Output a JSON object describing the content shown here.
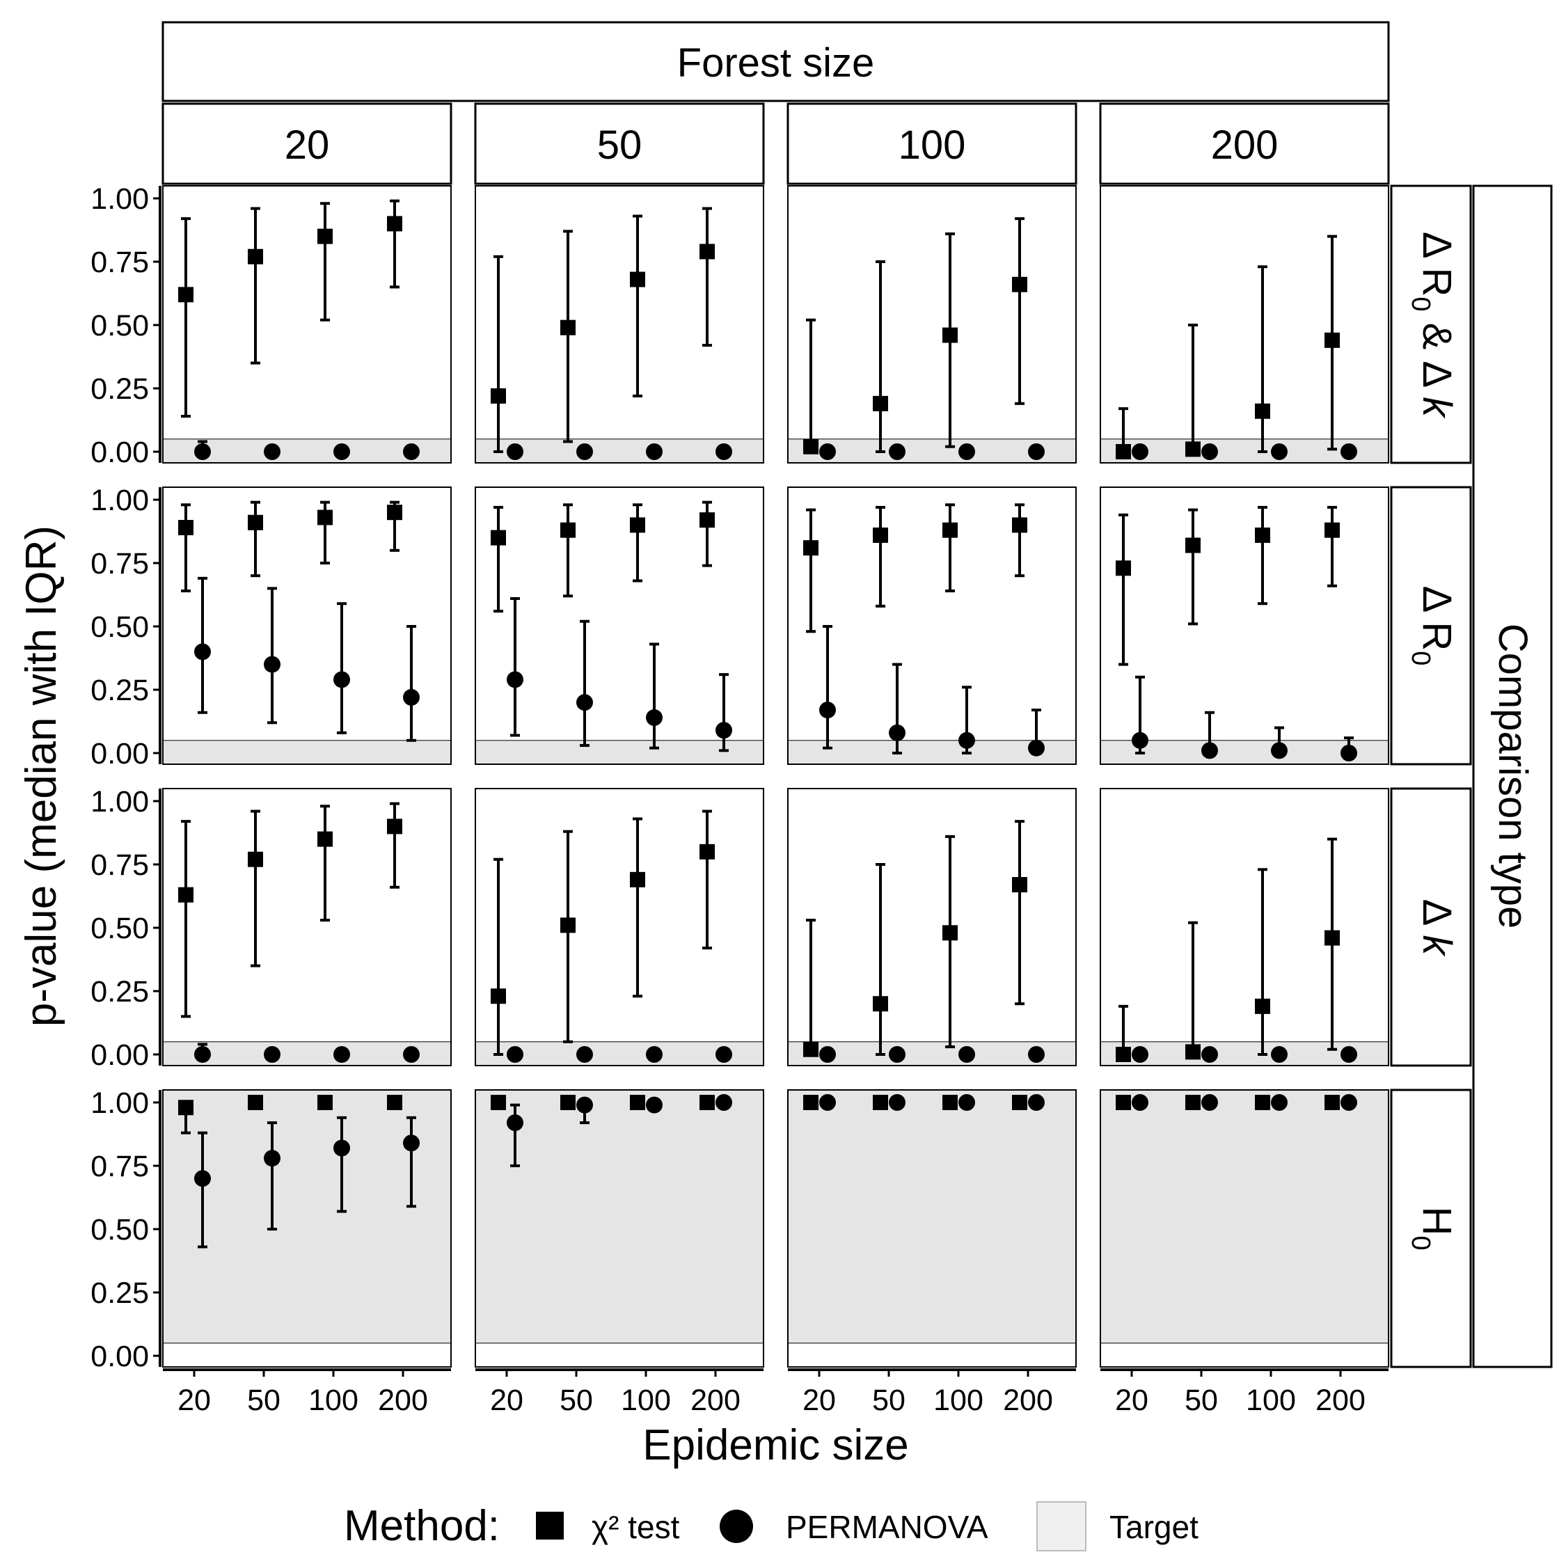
{
  "chart_data": {
    "type": "scatter",
    "subtype": "faceted point-range plot (median with IQR error bars)",
    "facet_col_title": "Forest size",
    "facet_cols": [
      "20",
      "50",
      "100",
      "200"
    ],
    "facet_row_title": "Comparison type",
    "facet_rows": [
      {
        "key": "R0k",
        "parts": [
          "Δ R",
          "0",
          " & Δ ",
          "k"
        ]
      },
      {
        "key": "R0",
        "parts": [
          "Δ R",
          "0"
        ]
      },
      {
        "key": "k",
        "parts": [
          "Δ ",
          "k"
        ]
      },
      {
        "key": "H0",
        "parts": [
          "H",
          "0"
        ]
      }
    ],
    "xlabel": "Epidemic size",
    "x_categories": [
      "20",
      "50",
      "100",
      "200"
    ],
    "ylabel": "p-value (median with IQR)",
    "ylim": [
      0,
      1
    ],
    "yticks": [
      "0.00",
      "0.25",
      "0.50",
      "0.75",
      "1.00"
    ],
    "target_threshold": 0.05,
    "legend": {
      "title": "Method:",
      "items": [
        {
          "label": "χ² test",
          "shape": "square"
        },
        {
          "label": "PERMANOVA",
          "shape": "circle"
        },
        {
          "label": "Target",
          "shape": "grey-fill"
        }
      ],
      "position": "bottom"
    },
    "series": [
      {
        "name": "χ² test",
        "panels": {
          "R0k": [
            [
              [
                0.62,
                0.14,
                0.92
              ],
              [
                0.77,
                0.35,
                0.96
              ],
              [
                0.85,
                0.52,
                0.98
              ],
              [
                0.9,
                0.65,
                0.99
              ]
            ],
            [
              [
                0.22,
                0.0,
                0.77
              ],
              [
                0.49,
                0.04,
                0.87
              ],
              [
                0.68,
                0.22,
                0.93
              ],
              [
                0.79,
                0.42,
                0.96
              ]
            ],
            [
              [
                0.02,
                0.0,
                0.52
              ],
              [
                0.19,
                0.0,
                0.75
              ],
              [
                0.46,
                0.02,
                0.86
              ],
              [
                0.66,
                0.19,
                0.92
              ]
            ],
            [
              [
                0.0,
                0.0,
                0.17
              ],
              [
                0.01,
                0.0,
                0.5
              ],
              [
                0.16,
                0.0,
                0.73
              ],
              [
                0.44,
                0.01,
                0.85
              ]
            ]
          ],
          "R0": [
            [
              [
                0.89,
                0.64,
                0.98
              ],
              [
                0.91,
                0.7,
                0.99
              ],
              [
                0.93,
                0.75,
                0.99
              ],
              [
                0.95,
                0.8,
                0.99
              ]
            ],
            [
              [
                0.85,
                0.56,
                0.97
              ],
              [
                0.88,
                0.62,
                0.98
              ],
              [
                0.9,
                0.68,
                0.98
              ],
              [
                0.92,
                0.74,
                0.99
              ]
            ],
            [
              [
                0.81,
                0.48,
                0.96
              ],
              [
                0.86,
                0.58,
                0.97
              ],
              [
                0.88,
                0.64,
                0.98
              ],
              [
                0.9,
                0.7,
                0.98
              ]
            ],
            [
              [
                0.73,
                0.35,
                0.94
              ],
              [
                0.82,
                0.51,
                0.96
              ],
              [
                0.86,
                0.59,
                0.97
              ],
              [
                0.88,
                0.66,
                0.97
              ]
            ]
          ],
          "k": [
            [
              [
                0.63,
                0.15,
                0.92
              ],
              [
                0.77,
                0.35,
                0.96
              ],
              [
                0.85,
                0.53,
                0.98
              ],
              [
                0.9,
                0.66,
                0.99
              ]
            ],
            [
              [
                0.23,
                0.0,
                0.77
              ],
              [
                0.51,
                0.05,
                0.88
              ],
              [
                0.69,
                0.23,
                0.93
              ],
              [
                0.8,
                0.42,
                0.96
              ]
            ],
            [
              [
                0.02,
                0.0,
                0.53
              ],
              [
                0.2,
                0.0,
                0.75
              ],
              [
                0.48,
                0.03,
                0.86
              ],
              [
                0.67,
                0.2,
                0.92
              ]
            ],
            [
              [
                0.0,
                0.0,
                0.19
              ],
              [
                0.01,
                0.0,
                0.52
              ],
              [
                0.19,
                0.0,
                0.73
              ],
              [
                0.46,
                0.02,
                0.85
              ]
            ]
          ],
          "H0": [
            [
              [
                0.98,
                0.88,
                1.0
              ],
              [
                1.0,
                1.0,
                1.0
              ],
              [
                1.0,
                1.0,
                1.0
              ],
              [
                1.0,
                1.0,
                1.0
              ]
            ],
            [
              [
                1.0,
                1.0,
                1.0
              ],
              [
                1.0,
                1.0,
                1.0
              ],
              [
                1.0,
                1.0,
                1.0
              ],
              [
                1.0,
                1.0,
                1.0
              ]
            ],
            [
              [
                1.0,
                1.0,
                1.0
              ],
              [
                1.0,
                1.0,
                1.0
              ],
              [
                1.0,
                1.0,
                1.0
              ],
              [
                1.0,
                1.0,
                1.0
              ]
            ],
            [
              [
                1.0,
                1.0,
                1.0
              ],
              [
                1.0,
                1.0,
                1.0
              ],
              [
                1.0,
                1.0,
                1.0
              ],
              [
                1.0,
                1.0,
                1.0
              ]
            ]
          ]
        }
      },
      {
        "name": "PERMANOVA",
        "panels": {
          "R0k": [
            [
              [
                0.0,
                0.0,
                0.04
              ],
              [
                0.0,
                0.0,
                0.0
              ],
              [
                0.0,
                0.0,
                0.0
              ],
              [
                0.0,
                0.0,
                0.0
              ]
            ],
            [
              [
                0.0,
                0.0,
                0.0
              ],
              [
                0.0,
                0.0,
                0.0
              ],
              [
                0.0,
                0.0,
                0.0
              ],
              [
                0.0,
                0.0,
                0.0
              ]
            ],
            [
              [
                0.0,
                0.0,
                0.0
              ],
              [
                0.0,
                0.0,
                0.0
              ],
              [
                0.0,
                0.0,
                0.0
              ],
              [
                0.0,
                0.0,
                0.0
              ]
            ],
            [
              [
                0.0,
                0.0,
                0.0
              ],
              [
                0.0,
                0.0,
                0.0
              ],
              [
                0.0,
                0.0,
                0.0
              ],
              [
                0.0,
                0.0,
                0.0
              ]
            ]
          ],
          "R0": [
            [
              [
                0.4,
                0.16,
                0.69
              ],
              [
                0.35,
                0.12,
                0.65
              ],
              [
                0.29,
                0.08,
                0.59
              ],
              [
                0.22,
                0.05,
                0.5
              ]
            ],
            [
              [
                0.29,
                0.07,
                0.61
              ],
              [
                0.2,
                0.03,
                0.52
              ],
              [
                0.14,
                0.02,
                0.43
              ],
              [
                0.09,
                0.01,
                0.31
              ]
            ],
            [
              [
                0.17,
                0.02,
                0.5
              ],
              [
                0.08,
                0.0,
                0.35
              ],
              [
                0.05,
                0.0,
                0.26
              ],
              [
                0.02,
                0.0,
                0.17
              ]
            ],
            [
              [
                0.05,
                0.0,
                0.3
              ],
              [
                0.01,
                0.0,
                0.16
              ],
              [
                0.01,
                0.0,
                0.1
              ],
              [
                0.0,
                0.0,
                0.06
              ]
            ]
          ],
          "k": [
            [
              [
                0.0,
                0.0,
                0.04
              ],
              [
                0.0,
                0.0,
                0.0
              ],
              [
                0.0,
                0.0,
                0.0
              ],
              [
                0.0,
                0.0,
                0.0
              ]
            ],
            [
              [
                0.0,
                0.0,
                0.0
              ],
              [
                0.0,
                0.0,
                0.0
              ],
              [
                0.0,
                0.0,
                0.0
              ],
              [
                0.0,
                0.0,
                0.0
              ]
            ],
            [
              [
                0.0,
                0.0,
                0.0
              ],
              [
                0.0,
                0.0,
                0.0
              ],
              [
                0.0,
                0.0,
                0.0
              ],
              [
                0.0,
                0.0,
                0.0
              ]
            ],
            [
              [
                0.0,
                0.0,
                0.0
              ],
              [
                0.0,
                0.0,
                0.0
              ],
              [
                0.0,
                0.0,
                0.0
              ],
              [
                0.0,
                0.0,
                0.0
              ]
            ]
          ],
          "H0": [
            [
              [
                0.7,
                0.43,
                0.88
              ],
              [
                0.78,
                0.5,
                0.92
              ],
              [
                0.82,
                0.57,
                0.94
              ],
              [
                0.84,
                0.59,
                0.94
              ]
            ],
            [
              [
                0.92,
                0.75,
                0.99
              ],
              [
                0.99,
                0.92,
                1.0
              ],
              [
                0.99,
                0.99,
                1.0
              ],
              [
                1.0,
                1.0,
                1.0
              ]
            ],
            [
              [
                1.0,
                1.0,
                1.0
              ],
              [
                1.0,
                1.0,
                1.0
              ],
              [
                1.0,
                1.0,
                1.0
              ],
              [
                1.0,
                1.0,
                1.0
              ]
            ],
            [
              [
                1.0,
                1.0,
                1.0
              ],
              [
                1.0,
                1.0,
                1.0
              ],
              [
                1.0,
                1.0,
                1.0
              ],
              [
                1.0,
                1.0,
                1.0
              ]
            ]
          ]
        }
      }
    ],
    "colors": {
      "points": "#000000",
      "target_fill": "#e5e5e5",
      "legend_target_fill": "#f0f0f0"
    },
    "grid": false
  }
}
